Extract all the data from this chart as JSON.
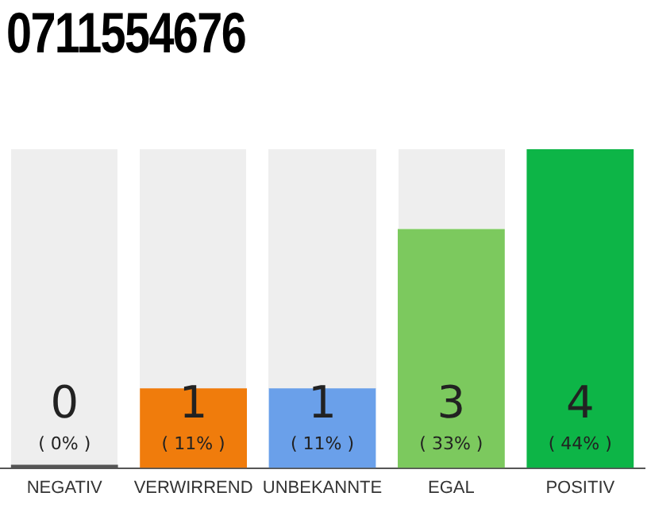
{
  "chart_data": {
    "type": "bar",
    "title": "0711554676",
    "categories": [
      "NEGATIV",
      "VERWIRREND",
      "UNBEKANNTE",
      "EGAL",
      "POSITIV"
    ],
    "values": [
      0,
      1,
      1,
      3,
      4
    ],
    "colors": [
      "#555555",
      "#f07c0c",
      "#6aa0ea",
      "#7cc95e",
      "#0db547"
    ],
    "ylim": [
      0,
      4
    ],
    "tick_labels": "x",
    "grid": false,
    "legend": false,
    "data_labels": true,
    "annotations": [
      "( 0% )",
      "( 11% )",
      "( 11% )",
      "( 33% )",
      "( 44% )"
    ]
  }
}
